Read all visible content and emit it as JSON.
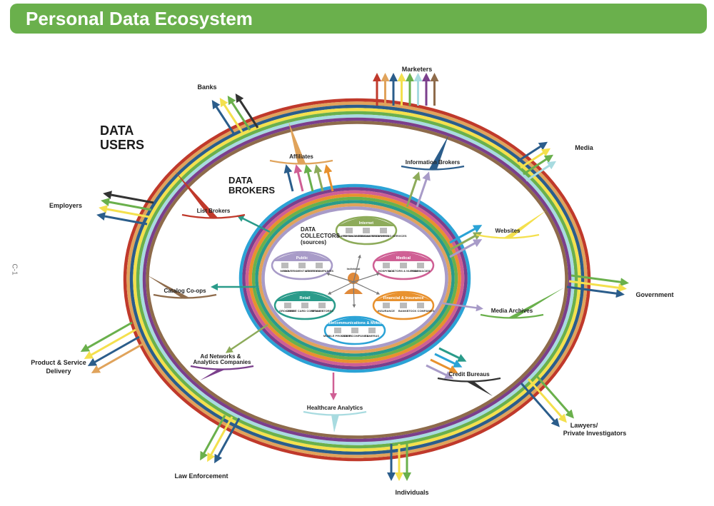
{
  "title": "Personal Data Ecosystem",
  "side_label": "C-1",
  "ring_colors": [
    "#c0392b",
    "#e0a35b",
    "#2b5d8b",
    "#f4e04d",
    "#6ab04c",
    "#a8dbe0",
    "#7b3f8c",
    "#8e6b4b"
  ],
  "headings": {
    "data_users": [
      "DATA",
      "USERS"
    ],
    "data_brokers": [
      "DATA",
      "BROKERS"
    ],
    "data_collectors": [
      "DATA",
      "COLLECTORS",
      "(sources)"
    ]
  },
  "center": "Individual",
  "collectors": [
    {
      "name": "Internet",
      "color": "#8dab5a",
      "items": [
        "SEARCH ENGINES",
        "RETAIL & CONSUMER MARKETS",
        "SOCIAL NETWORKING SERVICES"
      ]
    },
    {
      "name": "Public",
      "color": "#a89bc8",
      "items": [
        "MEDIA",
        "GOVERNMENT AGENCIES",
        "UTILITY COMPANIES"
      ]
    },
    {
      "name": "Medical",
      "color": "#cf5f94",
      "items": [
        "HOSPITALS",
        "DOCTORS & NURSES",
        "PHARMACIES"
      ]
    },
    {
      "name": "Retail",
      "color": "#2a9b8a",
      "items": [
        "GROCERIES",
        "CREDIT CARD COMPANIES",
        "RETAIL STORES"
      ]
    },
    {
      "name": "Financial & Insurance",
      "color": "#e8912e",
      "items": [
        "INSURANCE",
        "BANKS",
        "STOCK COMPANIES"
      ]
    },
    {
      "name": "Telecommunications & Mobile",
      "color": "#2ba3d6",
      "items": [
        "MOBILE PROVIDERS",
        "CABLE COMPANIES",
        "CAMERAS"
      ]
    }
  ],
  "brokers": [
    {
      "name": "Affiliates",
      "color": "#e0a35b"
    },
    {
      "name": "Information Brokers",
      "color": "#2b5d8b"
    },
    {
      "name": "List Brokers",
      "color": "#c0392b"
    },
    {
      "name": "Websites",
      "color": "#f4e04d"
    },
    {
      "name": "Catalog Co-ops",
      "color": "#8e6b4b"
    },
    {
      "name": "Media Archives",
      "color": "#6ab04c"
    },
    {
      "name": "Ad Networks &",
      "color": "#7b3f8c"
    },
    {
      "name": "Analytics Companies",
      "color": "#7b3f8c"
    },
    {
      "name": "Credit Bureaus",
      "color": "#333333"
    },
    {
      "name": "Healthcare Analytics",
      "color": "#a8dbe0"
    }
  ],
  "users": [
    "Marketers",
    "Banks",
    "Media",
    "Employers",
    "Government",
    "Product & Service",
    "Delivery",
    "Lawyers/",
    "Private Investigators",
    "Law Enforcement",
    "Individuals"
  ]
}
